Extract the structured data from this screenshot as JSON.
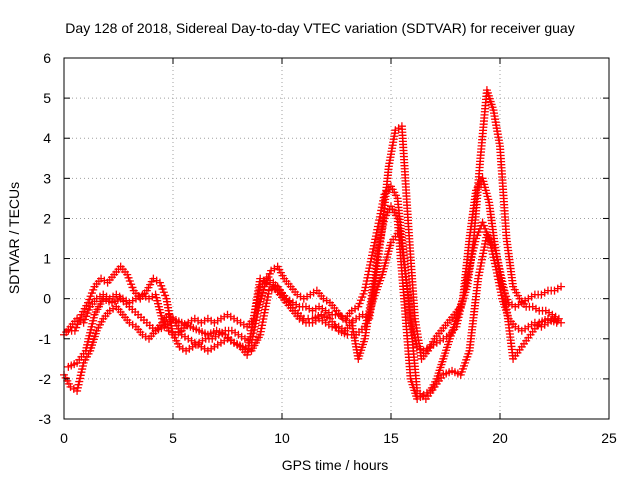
{
  "chart_data": {
    "type": "scatter",
    "title": "Day 128 of 2018, Sidereal Day-to-day VTEC variation (SDTVAR) for receiver guay",
    "xlabel": "GPS time / hours",
    "ylabel": "SDTVAR / TECUs",
    "xlim": [
      0,
      25
    ],
    "ylim": [
      -3,
      6
    ],
    "xticks": [
      0,
      5,
      10,
      15,
      20,
      25
    ],
    "yticks": [
      -3,
      -2,
      -1,
      0,
      1,
      2,
      3,
      4,
      5,
      6
    ],
    "grid": true,
    "marker": "plus",
    "color": "#ff0000",
    "series": [
      {
        "x": [
          0.0,
          0.3,
          0.6,
          0.9,
          1.2,
          1.5,
          1.8,
          2.1,
          2.4,
          2.7,
          3.0,
          3.3,
          3.6,
          3.9,
          4.2,
          4.5,
          4.8,
          5.1,
          5.4,
          5.7,
          6.0,
          6.3,
          6.6,
          6.9,
          7.2,
          7.5,
          7.8,
          8.1,
          8.4,
          8.7,
          9.0,
          9.3,
          9.6,
          9.9,
          10.2,
          10.5,
          10.8,
          11.1,
          11.4,
          11.7,
          12.0,
          12.3,
          12.6,
          12.9,
          13.2,
          13.5,
          13.8,
          14.1,
          14.4,
          14.7,
          15.0,
          15.3,
          15.6,
          15.9,
          16.2,
          16.5,
          16.8,
          17.1,
          17.4,
          17.7,
          18.0,
          18.3,
          18.6,
          18.9,
          19.2,
          19.5,
          19.8,
          20.1,
          20.4,
          20.7,
          21.0,
          21.3,
          21.6,
          21.9,
          22.2,
          22.5,
          22.8
        ],
        "y": [
          -0.9,
          -0.7,
          -0.5,
          -0.6,
          -0.2,
          0.0,
          0.1,
          0.0,
          0.1,
          0.0,
          -0.1,
          0.0,
          0.1,
          0.0,
          0.1,
          -0.5,
          -0.8,
          -0.9,
          -0.8,
          -0.6,
          -0.5,
          -0.6,
          -0.5,
          -0.6,
          -0.5,
          -0.4,
          -0.5,
          -0.6,
          -0.7,
          -0.5,
          0.3,
          0.5,
          0.4,
          0.2,
          0.0,
          -0.1,
          -0.2,
          -0.2,
          -0.3,
          -0.2,
          -0.3,
          -0.4,
          -0.4,
          -0.5,
          -0.3,
          -0.2,
          0.2,
          1.0,
          1.8,
          2.6,
          2.8,
          2.5,
          1.0,
          -0.5,
          -1.2,
          -1.3,
          -1.2,
          -1.1,
          -1.0,
          -0.9,
          -0.7,
          0.0,
          1.5,
          2.7,
          3.0,
          2.4,
          1.2,
          0.3,
          -0.1,
          -0.2,
          -0.1,
          0.0,
          0.1,
          0.1,
          0.2,
          0.2,
          0.3
        ]
      },
      {
        "x": [
          0.2,
          0.5,
          0.8,
          1.1,
          1.4,
          1.7,
          2.0,
          2.3,
          2.6,
          2.9,
          3.2,
          3.5,
          3.8,
          4.1,
          4.4,
          4.7,
          5.0,
          5.3,
          5.6,
          5.9,
          6.2,
          6.5,
          6.8,
          7.1,
          7.4,
          7.7,
          8.0,
          8.3,
          8.6,
          8.9,
          9.2,
          9.5,
          9.8,
          10.1,
          10.4,
          10.7,
          11.0,
          11.3,
          11.6,
          11.9,
          12.2,
          12.5,
          12.8,
          13.1,
          13.4,
          13.7,
          14.0,
          14.3,
          14.6,
          14.9,
          15.2,
          15.5,
          15.8,
          16.1,
          16.4,
          16.7,
          17.0,
          17.3,
          17.6,
          17.9,
          18.2,
          18.5,
          18.8,
          19.1,
          19.4,
          19.7,
          20.0,
          20.3,
          20.6,
          20.9,
          21.2,
          21.5,
          21.8,
          22.1,
          22.4,
          22.7
        ],
        "y": [
          -0.8,
          -0.8,
          -0.4,
          -0.1,
          0.3,
          0.5,
          0.4,
          0.6,
          0.8,
          0.6,
          0.2,
          0.0,
          0.2,
          0.5,
          0.4,
          0.0,
          -0.9,
          -1.2,
          -1.3,
          -1.2,
          -1.1,
          -1.0,
          -1.0,
          -0.9,
          -0.8,
          -0.8,
          -0.9,
          -1.0,
          -1.1,
          -0.3,
          0.3,
          0.7,
          0.8,
          0.5,
          0.3,
          0.1,
          0.0,
          0.1,
          0.2,
          0.0,
          -0.1,
          -0.3,
          -0.5,
          -0.6,
          -0.5,
          -0.4,
          -0.5,
          0.5,
          1.8,
          3.3,
          4.2,
          4.3,
          1.8,
          -0.5,
          -1.5,
          -1.3,
          -1.0,
          -0.8,
          -0.6,
          -0.4,
          -0.2,
          0.3,
          1.5,
          3.5,
          5.2,
          4.7,
          3.8,
          1.5,
          0.3,
          0.0,
          -0.2,
          -0.2,
          -0.3,
          -0.3,
          -0.4,
          -0.5
        ]
      },
      {
        "x": [
          0.0,
          0.3,
          0.6,
          0.9,
          1.2,
          1.5,
          1.8,
          2.1,
          2.4,
          2.7,
          3.0,
          3.3,
          3.6,
          3.9,
          4.2,
          4.5,
          4.8,
          5.1,
          5.4,
          5.7,
          6.0,
          6.3,
          6.6,
          6.9,
          7.2,
          7.5,
          7.8,
          8.1,
          8.4,
          8.7,
          9.0,
          9.3,
          9.6,
          9.9,
          10.2,
          10.5,
          10.8,
          11.1,
          11.4,
          11.7,
          12.0,
          12.3,
          12.6,
          12.9,
          13.2,
          13.5,
          13.8,
          14.1,
          14.4,
          14.7,
          15.0,
          15.3,
          15.6,
          15.9,
          16.2,
          16.5,
          16.8,
          17.1,
          17.4,
          17.7,
          18.0,
          18.3,
          18.6,
          18.9,
          19.2,
          19.5,
          19.8,
          20.1,
          20.4,
          20.7,
          21.0,
          21.3,
          21.6,
          21.9,
          22.2,
          22.5,
          22.8
        ],
        "y": [
          -1.9,
          -2.2,
          -2.3,
          -1.6,
          -1.3,
          -0.8,
          -0.5,
          -0.3,
          -0.2,
          -0.4,
          -0.6,
          -0.7,
          -0.9,
          -1.0,
          -0.8,
          -0.6,
          -0.4,
          -0.6,
          -0.9,
          -1.0,
          -1.1,
          -1.2,
          -1.3,
          -1.2,
          -1.1,
          -1.0,
          -1.1,
          -1.2,
          -1.4,
          -0.5,
          0.5,
          0.4,
          0.3,
          0.1,
          -0.1,
          -0.3,
          -0.5,
          -0.6,
          -0.6,
          -0.5,
          -0.6,
          -0.7,
          -0.7,
          -0.8,
          -0.6,
          -1.5,
          -1.0,
          0.0,
          1.2,
          2.0,
          2.3,
          2.0,
          0.0,
          -2.0,
          -2.5,
          -2.4,
          -2.3,
          -2.0,
          -1.5,
          -1.0,
          -0.5,
          0.0,
          0.8,
          1.5,
          1.9,
          1.5,
          0.8,
          0.0,
          -0.5,
          -0.7,
          -0.8,
          -0.7,
          -0.6,
          -0.7,
          -0.6,
          -0.5,
          -0.6
        ]
      },
      {
        "x": [
          0.2,
          0.6,
          1.0,
          1.4,
          1.8,
          2.2,
          2.6,
          3.0,
          3.4,
          3.8,
          4.2,
          4.6,
          5.0,
          5.4,
          5.8,
          6.2,
          6.6,
          7.0,
          7.4,
          7.8,
          8.2,
          8.6,
          9.0,
          9.4,
          9.8,
          10.2,
          10.6,
          11.0,
          11.4,
          11.8,
          12.2,
          12.6,
          13.0,
          13.4,
          13.8,
          14.2,
          14.6,
          15.0,
          15.4,
          15.8,
          16.2,
          16.6,
          17.0,
          17.4,
          17.8,
          18.2,
          18.6,
          19.0,
          19.4,
          19.8,
          20.2,
          20.6,
          21.0,
          21.4,
          21.8,
          22.2,
          22.6
        ],
        "y": [
          -1.7,
          -1.6,
          -1.3,
          -0.4,
          0.0,
          -0.1,
          0.0,
          -0.2,
          -0.4,
          -0.6,
          -0.8,
          -0.7,
          -0.5,
          -0.6,
          -0.7,
          -0.8,
          -0.9,
          -0.8,
          -0.9,
          -1.1,
          -1.2,
          -1.3,
          -0.9,
          0.2,
          0.3,
          0.0,
          -0.3,
          -0.5,
          -0.5,
          -0.4,
          -0.5,
          -0.8,
          -0.9,
          -0.9,
          -0.7,
          0.0,
          0.6,
          1.4,
          1.7,
          0.0,
          -2.3,
          -2.5,
          -2.2,
          -1.9,
          -1.8,
          -1.9,
          -1.3,
          0.5,
          1.6,
          1.2,
          0.2,
          -1.5,
          -1.2,
          -0.9,
          -0.6,
          -0.5,
          -0.6
        ]
      }
    ]
  }
}
